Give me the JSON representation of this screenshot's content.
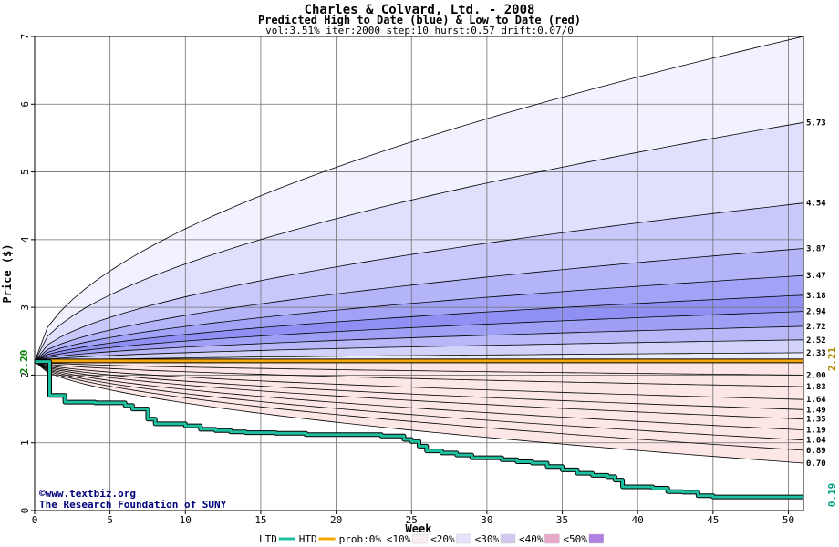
{
  "chart_data": {
    "type": "area",
    "title": "Charles & Colvard, Ltd. - 2008",
    "subtitle": "Predicted High to Date (blue) &  Low to Date (red)",
    "params": "vol:3.51% iter:2000 step:10 hurst:0.57 drift:0.07/0",
    "xlabel": "Week",
    "ylabel": "Price ($)",
    "xlim": [
      0,
      51
    ],
    "ylim": [
      0,
      7
    ],
    "xticks": [
      "0",
      "5",
      "10",
      "15",
      "20",
      "25",
      "30",
      "35",
      "40",
      "45",
      "50"
    ],
    "yticks": [
      "0",
      "1",
      "2",
      "3",
      "4",
      "5",
      "6",
      "7"
    ],
    "grid": true,
    "start_label": "2.20",
    "current_label": "2.21",
    "final_low_label": "0.19",
    "start_value": 2.2,
    "current_value": 2.21,
    "high_band_finals": [
      7.0,
      5.73,
      4.54,
      3.87,
      3.47,
      3.18,
      2.94,
      2.72,
      2.52,
      2.33
    ],
    "low_band_finals": [
      2.0,
      1.83,
      1.64,
      1.49,
      1.35,
      1.19,
      1.04,
      0.89,
      0.7
    ],
    "high_labels": [
      "5.73",
      "4.54",
      "3.87",
      "3.47",
      "3.18",
      "2.94",
      "2.72",
      "2.52",
      "2.33"
    ],
    "low_labels": [
      "2.00",
      "1.83",
      "1.64",
      "1.49",
      "1.35",
      "1.19",
      "1.04",
      "0.89",
      "0.70"
    ],
    "high_band_colors": [
      "#f2f2fe",
      "#e0e0fc",
      "#c8c8fa",
      "#b4b4f8",
      "#a2a2f6",
      "#9090f4",
      "#9f9ff6",
      "#b8b8f8",
      "#d2d2fb",
      "#ececfe"
    ],
    "low_band_colors": [
      "#fdf0f0",
      "#fbdcdc",
      "#f8c4c4",
      "#f6b0b0",
      "#f49a9a",
      "#f28a8a",
      "#f5a8a8",
      "#f8c6c6",
      "#fce6e6"
    ],
    "ltd_series": {
      "name": "LTD",
      "color": "#1fc0a0",
      "x": [
        0,
        1,
        2,
        3,
        4,
        5,
        5.5,
        6,
        6.5,
        7,
        7.5,
        8,
        9,
        10,
        11,
        12,
        13,
        14,
        15,
        16,
        17,
        18,
        19,
        20,
        21,
        22,
        23,
        24,
        24.5,
        25,
        25.5,
        26,
        27,
        28,
        29,
        30,
        31,
        32,
        33,
        34,
        35,
        36,
        37,
        38,
        38.5,
        39,
        40,
        41,
        42,
        43,
        44,
        45,
        46,
        47,
        48,
        49,
        50,
        51
      ],
      "y": [
        2.2,
        1.7,
        1.6,
        1.6,
        1.59,
        1.59,
        1.59,
        1.55,
        1.5,
        1.5,
        1.35,
        1.28,
        1.28,
        1.25,
        1.2,
        1.18,
        1.16,
        1.15,
        1.15,
        1.14,
        1.14,
        1.12,
        1.12,
        1.12,
        1.12,
        1.12,
        1.1,
        1.1,
        1.05,
        1.02,
        0.95,
        0.88,
        0.85,
        0.82,
        0.78,
        0.78,
        0.75,
        0.72,
        0.7,
        0.65,
        0.6,
        0.55,
        0.52,
        0.5,
        0.45,
        0.35,
        0.35,
        0.33,
        0.28,
        0.27,
        0.22,
        0.2,
        0.2,
        0.2,
        0.2,
        0.2,
        0.2,
        0.2
      ]
    },
    "htd_series": {
      "name": "HTD",
      "color": "#f5a800",
      "value": 2.21
    },
    "legend": {
      "items": [
        {
          "label": "LTD",
          "swatch": "line",
          "color": "#1fc0a0"
        },
        {
          "label": "HTD",
          "swatch": "line",
          "color": "#f5a800"
        },
        {
          "label": "prob:0%",
          "swatch": "none",
          "color": "#ffffff"
        },
        {
          "label": "<10%",
          "swatch": "box",
          "color": "#f8f0f0"
        },
        {
          "label": "<20%",
          "swatch": "box",
          "color": "#e6e4fa"
        },
        {
          "label": "<30%",
          "swatch": "box",
          "color": "#d4c8f0"
        },
        {
          "label": "<40%",
          "swatch": "box",
          "color": "#e8a8c8"
        },
        {
          "label": "<50%",
          "swatch": "box",
          "color": "#b080e0"
        }
      ]
    }
  },
  "credits": {
    "line1": "©www.textbiz.org",
    "line2": "The Research Foundation of SUNY"
  }
}
